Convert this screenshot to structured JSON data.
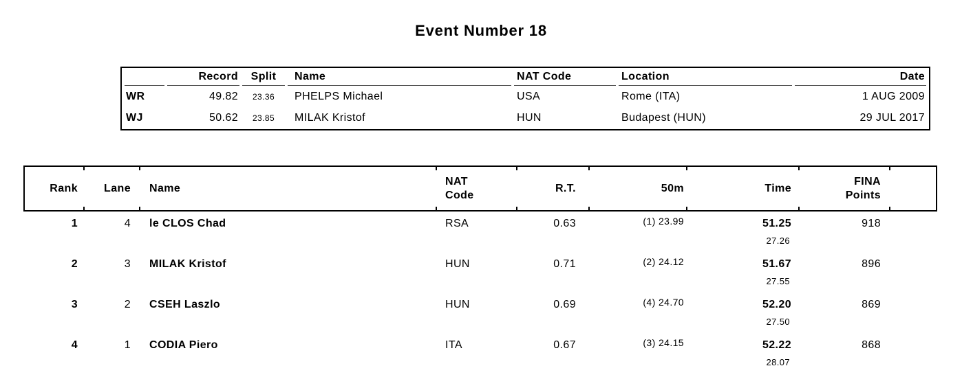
{
  "page_title": "Event Number 18",
  "colors": {
    "background": "#ffffff",
    "text": "#000000",
    "table_border": "#000000",
    "header_separator": "#555555"
  },
  "records": {
    "columns": {
      "record_label": "Record",
      "split_label": "Split",
      "name_label": "Name",
      "nat_label": "NAT Code",
      "location_label": "Location",
      "date_label": "Date"
    },
    "rows": [
      {
        "type": "WR",
        "record": "49.82",
        "split": "23.36",
        "name": "PHELPS Michael",
        "nat_code": "USA",
        "location": "Rome (ITA)",
        "date": "1 AUG 2009"
      },
      {
        "type": "WJ",
        "record": "50.62",
        "split": "23.85",
        "name": "MILAK Kristof",
        "nat_code": "HUN",
        "location": "Budapest (HUN)",
        "date": "29 JUL 2017"
      }
    ]
  },
  "results": {
    "columns": {
      "rank_label": "Rank",
      "lane_label": "Lane",
      "name_label": "Name",
      "nat_lines": [
        "NAT",
        "Code"
      ],
      "rt_label": "R.T.",
      "split50_label": "50m",
      "time_label": "Time",
      "fina_lines": [
        "FINA",
        "Points"
      ]
    },
    "rows": [
      {
        "rank": "1",
        "lane": "4",
        "name": "le CLOS Chad",
        "nat_code": "RSA",
        "rt": "0.63",
        "split_50m": "(1) 23.99",
        "time": "51.25",
        "time_split": "27.26",
        "fina_points": "918"
      },
      {
        "rank": "2",
        "lane": "3",
        "name": "MILAK Kristof",
        "nat_code": "HUN",
        "rt": "0.71",
        "split_50m": "(2) 24.12",
        "time": "51.67",
        "time_split": "27.55",
        "fina_points": "896"
      },
      {
        "rank": "3",
        "lane": "2",
        "name": "CSEH Laszlo",
        "nat_code": "HUN",
        "rt": "0.69",
        "split_50m": "(4) 24.70",
        "time": "52.20",
        "time_split": "27.50",
        "fina_points": "869"
      },
      {
        "rank": "4",
        "lane": "1",
        "name": "CODIA Piero",
        "nat_code": "ITA",
        "rt": "0.67",
        "split_50m": "(3) 24.15",
        "time": "52.22",
        "time_split": "28.07",
        "fina_points": "868"
      }
    ]
  }
}
